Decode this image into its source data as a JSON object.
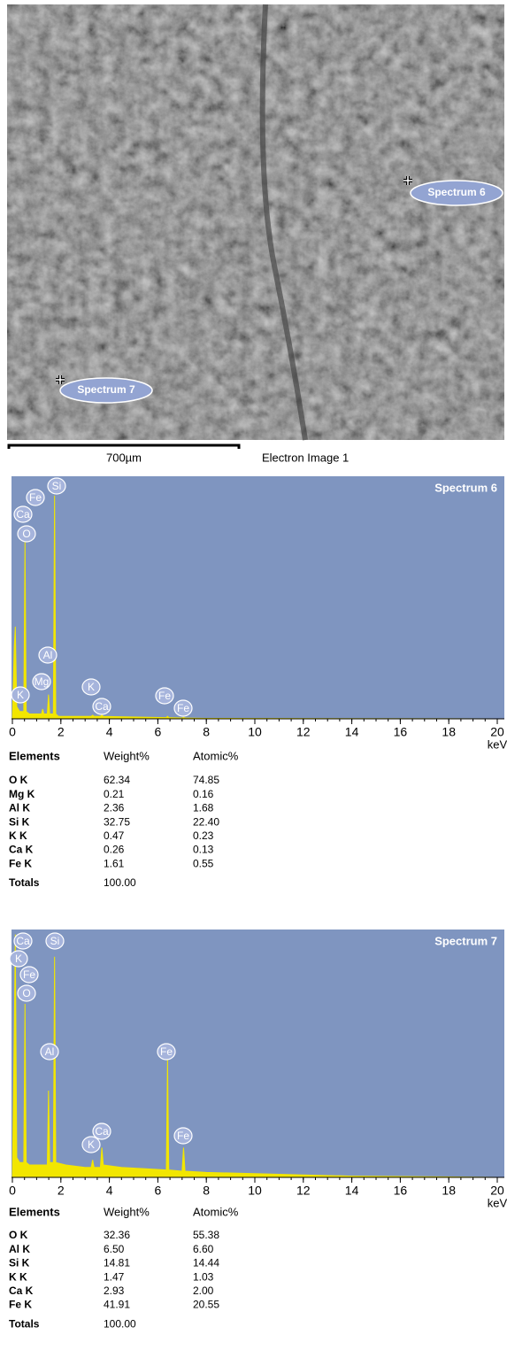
{
  "image": {
    "scale_bar": "700µm",
    "caption": "Electron Image 1",
    "markers": [
      "Spectrum 6",
      "Spectrum 7"
    ]
  },
  "chart_data": [
    {
      "type": "area",
      "title": "Spectrum 6",
      "xlabel": "keV",
      "color": "#f2e600",
      "plot_background": "#7f95c0",
      "xlim": [
        0,
        20
      ],
      "xticks": [
        0,
        2,
        4,
        6,
        8,
        10,
        12,
        14,
        16,
        18,
        20
      ],
      "ylim": [
        0,
        100
      ],
      "x": [
        0,
        0.08,
        0.12,
        0.18,
        0.3,
        0.47,
        0.52,
        0.57,
        0.7,
        1.2,
        1.25,
        1.3,
        1.44,
        1.49,
        1.54,
        1.69,
        1.74,
        1.79,
        1.9,
        3.25,
        3.31,
        3.37,
        3.63,
        3.69,
        3.75,
        6.35,
        6.4,
        6.45,
        7.0,
        7.06,
        7.12,
        8,
        20
      ],
      "values": [
        0,
        30,
        38,
        5,
        3,
        3,
        73,
        3,
        2,
        2,
        4,
        2,
        2,
        10,
        2,
        2,
        92,
        2,
        1,
        1,
        1.5,
        1,
        1,
        1.5,
        1,
        0.5,
        1,
        0.5,
        0.3,
        0.6,
        0.3,
        0.2,
        0
      ],
      "peak_labels": [
        "Fe",
        "Si",
        "Ca",
        "O",
        "Al",
        "Mg",
        "K",
        "K",
        "Ca",
        "Fe",
        "Fe"
      ]
    },
    {
      "type": "area",
      "title": "Spectrum 7",
      "xlabel": "keV",
      "color": "#f2e600",
      "plot_background": "#7f95c0",
      "xlim": [
        0,
        20
      ],
      "xticks": [
        0,
        2,
        4,
        6,
        8,
        10,
        12,
        14,
        16,
        18,
        20
      ],
      "ylim": [
        0,
        100
      ],
      "x": [
        0,
        0.08,
        0.12,
        0.18,
        0.3,
        0.47,
        0.52,
        0.57,
        0.7,
        1.2,
        1.44,
        1.49,
        1.54,
        1.69,
        1.74,
        1.79,
        2.2,
        3.0,
        3.25,
        3.31,
        3.37,
        3.63,
        3.69,
        3.75,
        4.5,
        5.5,
        6.35,
        6.4,
        6.45,
        7.0,
        7.06,
        7.12,
        8,
        10,
        12,
        14,
        20
      ],
      "values": [
        0,
        60,
        98,
        8,
        6,
        6,
        70,
        6,
        5,
        5,
        5,
        35,
        6,
        6,
        89,
        6,
        5,
        4,
        4,
        7,
        4,
        4,
        12,
        5,
        4,
        3.5,
        3,
        48,
        3,
        2.5,
        12,
        2.5,
        2,
        1.5,
        1,
        0.5,
        0
      ],
      "peak_labels": [
        "Ca",
        "Si",
        "K",
        "Fe",
        "O",
        "Al",
        "Fe",
        "Ca",
        "K",
        "Fe"
      ]
    }
  ],
  "tables": [
    {
      "header": [
        "Elements",
        "Weight%",
        "Atomic%"
      ],
      "rows": [
        [
          "O K",
          "62.34",
          "74.85"
        ],
        [
          "Mg K",
          "0.21",
          "0.16"
        ],
        [
          "Al K",
          "2.36",
          "1.68"
        ],
        [
          "Si K",
          "32.75",
          "22.40"
        ],
        [
          "K K",
          "0.47",
          "0.23"
        ],
        [
          "Ca K",
          "0.26",
          "0.13"
        ],
        [
          "Fe K",
          "1.61",
          "0.55"
        ]
      ],
      "totals": [
        "Totals",
        "100.00"
      ]
    },
    {
      "header": [
        "Elements",
        "Weight%",
        "Atomic%"
      ],
      "rows": [
        [
          "O K",
          "32.36",
          "55.38"
        ],
        [
          "Al K",
          "6.50",
          "6.60"
        ],
        [
          "Si K",
          "14.81",
          "14.44"
        ],
        [
          "K K",
          "1.47",
          "1.03"
        ],
        [
          "Ca K",
          "2.93",
          "2.00"
        ],
        [
          "Fe K",
          "41.91",
          "20.55"
        ]
      ],
      "totals": [
        "Totals",
        "100.00"
      ]
    }
  ]
}
